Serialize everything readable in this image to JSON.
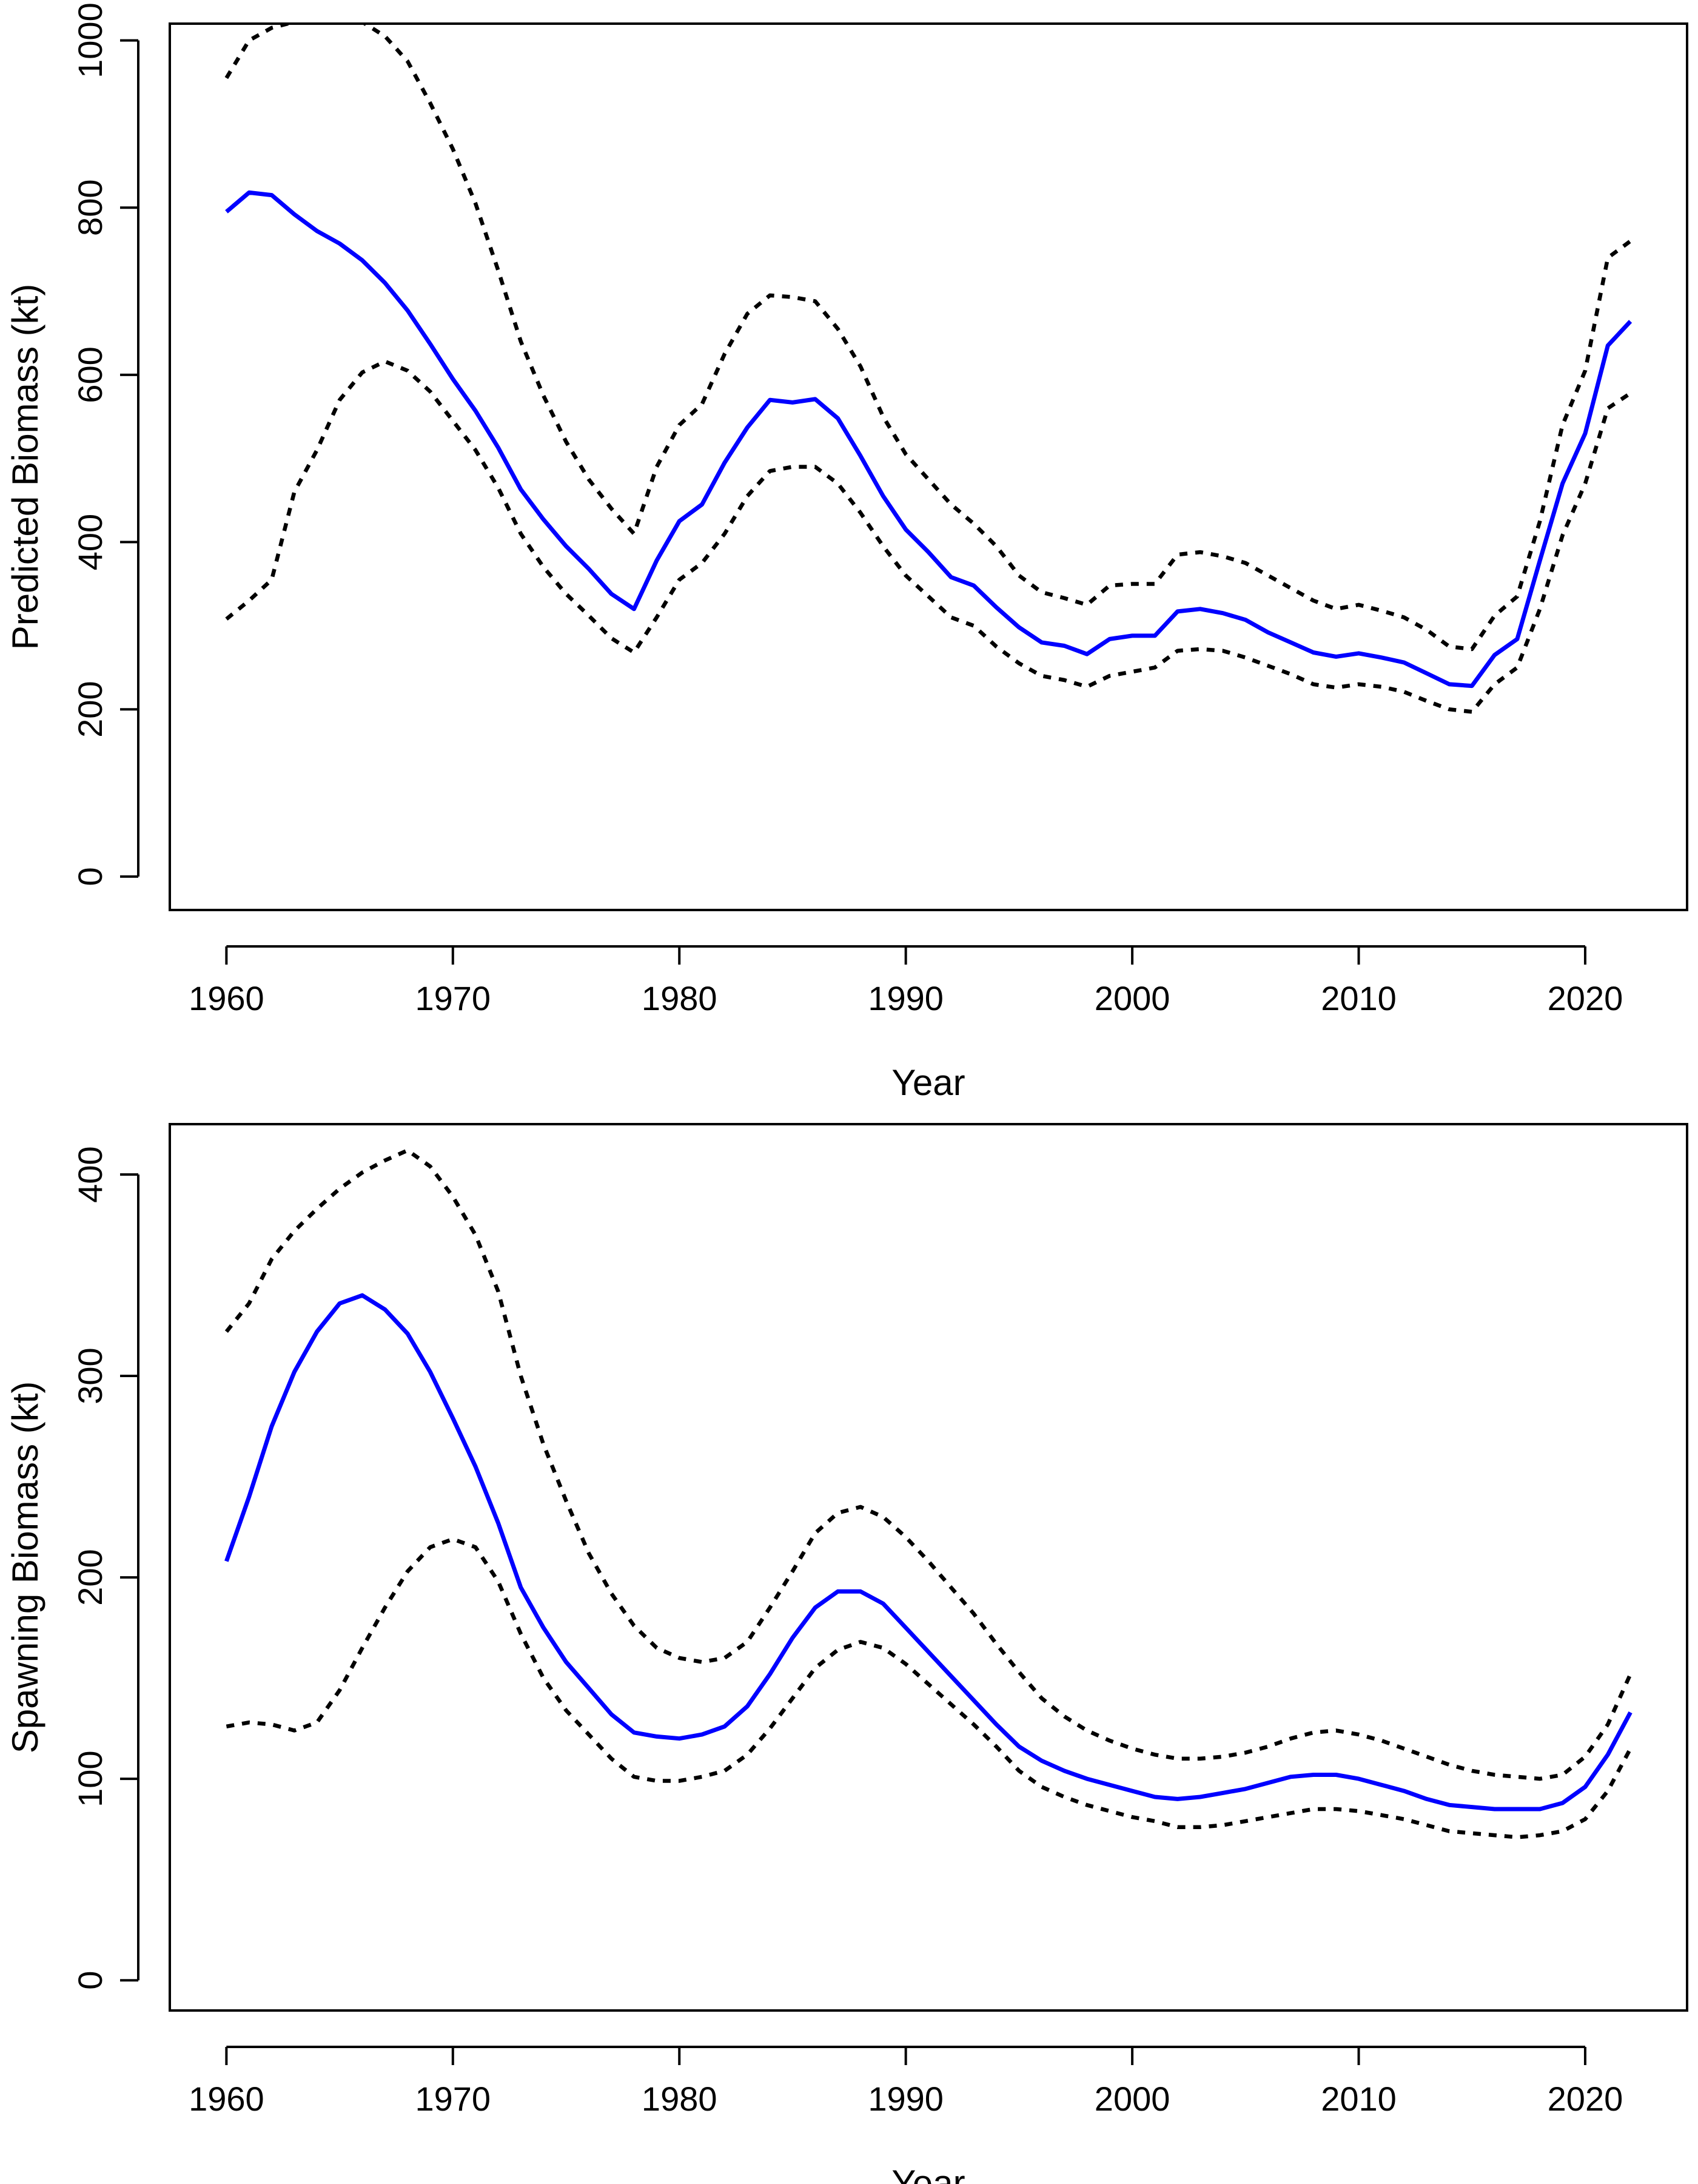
{
  "colors": {
    "estimate": "#0000ff",
    "bounds": "#000000",
    "axes": "#000000",
    "background": "#ffffff"
  },
  "chart_data": [
    {
      "type": "line",
      "xlabel": "Year",
      "ylabel": "Predicted Biomass (kt)",
      "xlim": [
        1957.5,
        2024.5
      ],
      "ylim": [
        -40,
        1020
      ],
      "xticks": [
        1960,
        1970,
        1980,
        1990,
        2000,
        2010,
        2020
      ],
      "yticks": [
        0,
        200,
        400,
        600,
        800,
        1000
      ],
      "grid": false,
      "legend": "none",
      "x": [
        1960,
        1961,
        1962,
        1963,
        1964,
        1965,
        1966,
        1967,
        1968,
        1969,
        1970,
        1971,
        1972,
        1973,
        1974,
        1975,
        1976,
        1977,
        1978,
        1979,
        1980,
        1981,
        1982,
        1983,
        1984,
        1985,
        1986,
        1987,
        1988,
        1989,
        1990,
        1991,
        1992,
        1993,
        1994,
        1995,
        1996,
        1997,
        1998,
        1999,
        2000,
        2001,
        2002,
        2003,
        2004,
        2005,
        2006,
        2007,
        2008,
        2009,
        2010,
        2011,
        2012,
        2013,
        2014,
        2015,
        2016,
        2017,
        2018,
        2019,
        2020,
        2021,
        2022
      ],
      "series": [
        {
          "style": "solid",
          "values": [
            795,
            818,
            815,
            792,
            772,
            757,
            737,
            710,
            677,
            637,
            595,
            557,
            513,
            463,
            427,
            395,
            368,
            338,
            320,
            378,
            425,
            445,
            495,
            537,
            570,
            567,
            571,
            548,
            503,
            455,
            415,
            388,
            358,
            348,
            322,
            298,
            280,
            276,
            266,
            284,
            288,
            288,
            317,
            320,
            315,
            307,
            292,
            280,
            268,
            263,
            267,
            262,
            256,
            243,
            230,
            228,
            265,
            284,
            378,
            470,
            530,
            635,
            664
          ]
        },
        {
          "style": "dotted",
          "values": [
            308,
            330,
            355,
            460,
            510,
            570,
            603,
            616,
            605,
            580,
            545,
            510,
            465,
            410,
            370,
            338,
            312,
            285,
            268,
            310,
            355,
            375,
            410,
            455,
            485,
            490,
            490,
            470,
            435,
            395,
            360,
            335,
            310,
            300,
            275,
            255,
            240,
            235,
            227,
            240,
            245,
            250,
            270,
            272,
            270,
            262,
            252,
            242,
            230,
            226,
            230,
            227,
            221,
            210,
            200,
            197,
            230,
            250,
            320,
            408,
            470,
            560,
            578
          ]
        },
        {
          "style": "dotted",
          "values": [
            955,
            1000,
            1015,
            1022,
            1022,
            1022,
            1022,
            1005,
            975,
            925,
            870,
            805,
            725,
            640,
            575,
            520,
            475,
            440,
            410,
            490,
            540,
            565,
            625,
            673,
            695,
            693,
            688,
            655,
            610,
            550,
            505,
            475,
            445,
            422,
            395,
            360,
            340,
            333,
            325,
            348,
            350,
            350,
            385,
            388,
            383,
            375,
            360,
            345,
            330,
            320,
            325,
            318,
            310,
            295,
            275,
            272,
            312,
            335,
            425,
            540,
            605,
            740,
            760
          ]
        }
      ]
    },
    {
      "type": "line",
      "xlabel": "Year",
      "ylabel": "Spawning Biomass (kt)",
      "xlim": [
        1957.5,
        2024.5
      ],
      "ylim": [
        -15,
        425
      ],
      "xticks": [
        1960,
        1970,
        1980,
        1990,
        2000,
        2010,
        2020
      ],
      "yticks": [
        0,
        100,
        200,
        300,
        400
      ],
      "grid": false,
      "legend": "none",
      "x": [
        1960,
        1961,
        1962,
        1963,
        1964,
        1965,
        1966,
        1967,
        1968,
        1969,
        1970,
        1971,
        1972,
        1973,
        1974,
        1975,
        1976,
        1977,
        1978,
        1979,
        1980,
        1981,
        1982,
        1983,
        1984,
        1985,
        1986,
        1987,
        1988,
        1989,
        1990,
        1991,
        1992,
        1993,
        1994,
        1995,
        1996,
        1997,
        1998,
        1999,
        2000,
        2001,
        2002,
        2003,
        2004,
        2005,
        2006,
        2007,
        2008,
        2009,
        2010,
        2011,
        2012,
        2013,
        2014,
        2015,
        2016,
        2017,
        2018,
        2019,
        2020,
        2021,
        2022
      ],
      "series": [
        {
          "style": "solid",
          "values": [
            208,
            240,
            275,
            302,
            322,
            336,
            340,
            333,
            321,
            302,
            279,
            255,
            227,
            195,
            175,
            158,
            145,
            132,
            123,
            121,
            120,
            122,
            126,
            136,
            152,
            170,
            185,
            193,
            193,
            187,
            175,
            163,
            151,
            139,
            127,
            116,
            109,
            104,
            100,
            97,
            94,
            91,
            90,
            91,
            93,
            95,
            98,
            101,
            102,
            102,
            100,
            97,
            94,
            90,
            87,
            86,
            85,
            85,
            85,
            88,
            96,
            112,
            133
          ]
        },
        {
          "style": "dotted",
          "values": [
            126,
            128,
            127,
            124,
            128,
            144,
            165,
            185,
            203,
            215,
            219,
            215,
            198,
            172,
            150,
            134,
            122,
            110,
            101,
            99,
            99,
            101,
            104,
            112,
            125,
            140,
            155,
            164,
            168,
            165,
            157,
            147,
            137,
            127,
            116,
            104,
            96,
            91,
            87,
            84,
            81,
            79,
            76,
            76,
            77,
            79,
            81,
            83,
            85,
            85,
            84,
            82,
            80,
            77,
            74,
            73,
            72,
            71,
            72,
            74,
            80,
            94,
            115
          ]
        },
        {
          "style": "dotted",
          "values": [
            322,
            336,
            358,
            372,
            383,
            393,
            401,
            407,
            412,
            404,
            389,
            370,
            342,
            300,
            266,
            238,
            212,
            192,
            176,
            165,
            160,
            158,
            160,
            168,
            185,
            203,
            222,
            232,
            235,
            230,
            220,
            208,
            195,
            182,
            167,
            153,
            140,
            131,
            124,
            119,
            115,
            112,
            110,
            110,
            111,
            113,
            116,
            120,
            123,
            124,
            122,
            119,
            115,
            111,
            107,
            104,
            102,
            101,
            100,
            102,
            111,
            127,
            152
          ]
        }
      ]
    }
  ]
}
